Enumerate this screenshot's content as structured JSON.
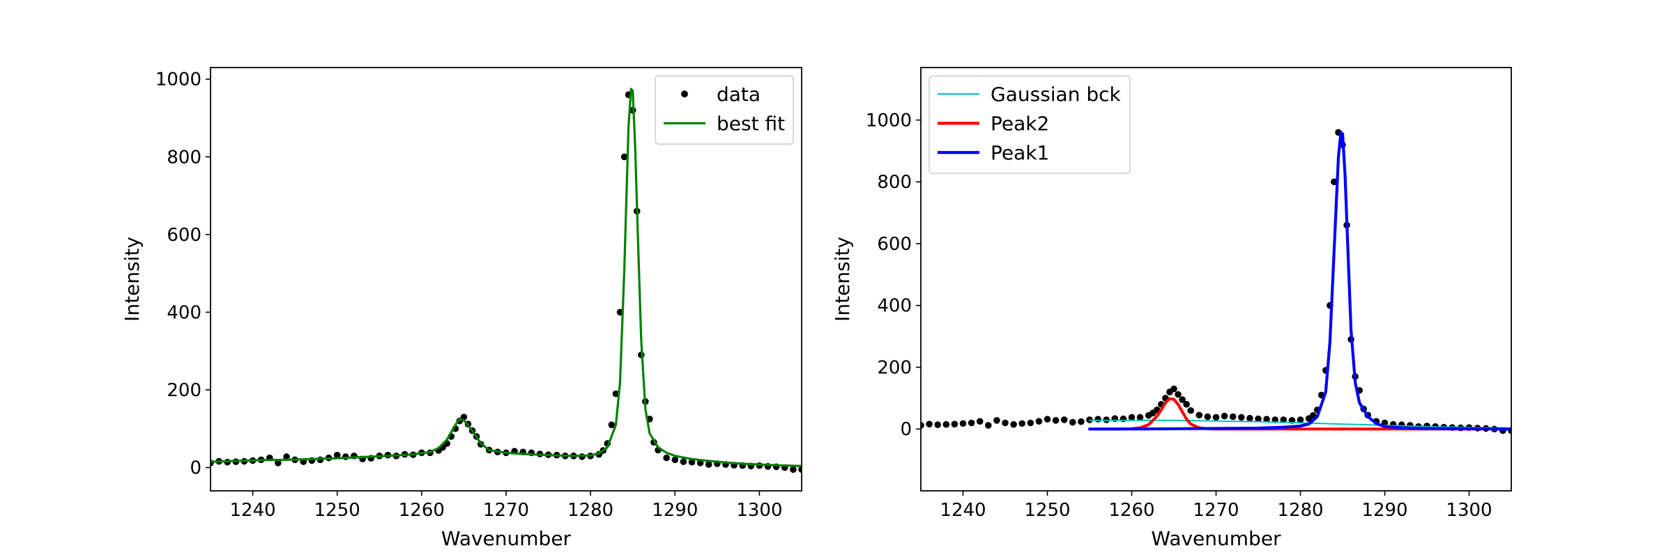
{
  "chart_data": [
    {
      "type": "line",
      "xlabel": "Wavenumber",
      "ylabel": "Intensity",
      "xlim": [
        1235,
        1305
      ],
      "ylim": [
        -60,
        1030
      ],
      "xticks": [
        1240,
        1250,
        1260,
        1270,
        1280,
        1290,
        1300
      ],
      "yticks": [
        0,
        200,
        400,
        600,
        800,
        1000
      ],
      "legend_position": "top-right",
      "series": [
        {
          "name": "data",
          "kind": "scatter",
          "color": "#000000",
          "x": [
            1235,
            1236,
            1237,
            1238,
            1239,
            1240,
            1241,
            1242,
            1243,
            1244,
            1245,
            1246,
            1247,
            1248,
            1249,
            1250,
            1251,
            1252,
            1253,
            1254,
            1255,
            1256,
            1257,
            1258,
            1259,
            1260,
            1261,
            1262,
            1262.5,
            1263,
            1263.5,
            1264,
            1264.5,
            1265,
            1265.5,
            1266,
            1266.5,
            1267,
            1268,
            1269,
            1270,
            1271,
            1272,
            1273,
            1274,
            1275,
            1276,
            1277,
            1278,
            1279,
            1280,
            1281,
            1281.5,
            1282,
            1282.5,
            1283,
            1283.5,
            1284,
            1284.5,
            1285,
            1285.5,
            1286,
            1286.5,
            1287,
            1287.5,
            1288,
            1289,
            1290,
            1291,
            1292,
            1293,
            1294,
            1295,
            1296,
            1297,
            1298,
            1299,
            1300,
            1301,
            1302,
            1303,
            1304,
            1305
          ],
          "y": [
            12,
            16,
            14,
            15,
            16,
            18,
            20,
            25,
            12,
            28,
            20,
            15,
            18,
            20,
            25,
            32,
            28,
            30,
            22,
            24,
            30,
            32,
            30,
            34,
            33,
            38,
            38,
            44,
            52,
            62,
            80,
            100,
            120,
            130,
            112,
            95,
            80,
            60,
            45,
            40,
            38,
            42,
            40,
            38,
            35,
            33,
            32,
            30,
            30,
            28,
            30,
            34,
            44,
            62,
            110,
            190,
            400,
            800,
            960,
            920,
            660,
            290,
            170,
            125,
            65,
            45,
            25,
            20,
            15,
            14,
            12,
            8,
            10,
            8,
            6,
            5,
            4,
            5,
            3,
            2,
            0,
            -5,
            -5
          ]
        },
        {
          "name": "best fit",
          "kind": "line",
          "color": "#008000",
          "x": [
            1235,
            1238,
            1241,
            1244,
            1247,
            1250,
            1253,
            1256,
            1259,
            1261,
            1262,
            1263,
            1264,
            1264.5,
            1265,
            1266,
            1267,
            1268,
            1270,
            1272,
            1275,
            1278,
            1280,
            1281,
            1282,
            1283,
            1283.5,
            1284,
            1284.5,
            1284.8,
            1285,
            1285.3,
            1285.6,
            1286,
            1286.5,
            1287,
            1288,
            1289,
            1290,
            1292,
            1294,
            1296,
            1298,
            1300,
            1302,
            1305
          ],
          "y": [
            15,
            17,
            19,
            20,
            22,
            24,
            27,
            30,
            34,
            40,
            50,
            72,
            110,
            125,
            122,
            95,
            62,
            45,
            38,
            35,
            32,
            30,
            31,
            37,
            52,
            110,
            220,
            510,
            880,
            975,
            970,
            820,
            600,
            330,
            150,
            88,
            52,
            38,
            30,
            22,
            17,
            13,
            10,
            8,
            6,
            4
          ]
        }
      ]
    },
    {
      "type": "line",
      "xlabel": "Wavenumber",
      "ylabel": "Intensity",
      "xlim": [
        1235,
        1305
      ],
      "ylim": [
        -200,
        1170
      ],
      "xticks": [
        1240,
        1250,
        1260,
        1270,
        1280,
        1290,
        1300
      ],
      "yticks": [
        0,
        200,
        400,
        600,
        800,
        1000
      ],
      "legend_position": "top-left",
      "series": [
        {
          "name": "",
          "kind": "scatter",
          "color": "#000000",
          "x": [
            1235,
            1236,
            1237,
            1238,
            1239,
            1240,
            1241,
            1242,
            1243,
            1244,
            1245,
            1246,
            1247,
            1248,
            1249,
            1250,
            1251,
            1252,
            1253,
            1254,
            1255,
            1256,
            1257,
            1258,
            1259,
            1260,
            1261,
            1262,
            1262.5,
            1263,
            1263.5,
            1264,
            1264.5,
            1265,
            1265.5,
            1266,
            1266.5,
            1267,
            1268,
            1269,
            1270,
            1271,
            1272,
            1273,
            1274,
            1275,
            1276,
            1277,
            1278,
            1279,
            1280,
            1281,
            1281.5,
            1282,
            1282.5,
            1283,
            1283.5,
            1284,
            1284.5,
            1285,
            1285.5,
            1286,
            1286.5,
            1287,
            1287.5,
            1288,
            1289,
            1290,
            1291,
            1292,
            1293,
            1294,
            1295,
            1296,
            1297,
            1298,
            1299,
            1300,
            1301,
            1302,
            1303,
            1304,
            1305
          ],
          "y": [
            12,
            16,
            14,
            15,
            16,
            18,
            20,
            25,
            12,
            28,
            20,
            15,
            18,
            20,
            25,
            32,
            28,
            30,
            22,
            24,
            30,
            32,
            30,
            34,
            33,
            38,
            38,
            44,
            52,
            62,
            80,
            100,
            120,
            130,
            112,
            95,
            80,
            60,
            45,
            40,
            38,
            42,
            40,
            38,
            35,
            33,
            32,
            30,
            30,
            28,
            30,
            34,
            44,
            62,
            110,
            190,
            400,
            800,
            960,
            920,
            660,
            290,
            170,
            125,
            65,
            45,
            25,
            20,
            15,
            14,
            12,
            8,
            10,
            8,
            6,
            5,
            4,
            5,
            3,
            2,
            0,
            -5,
            -5
          ]
        },
        {
          "name": "Gaussian bck",
          "kind": "line",
          "color": "#00bfbf",
          "x": [
            1255,
            1265,
            1275,
            1285,
            1295,
            1305
          ],
          "y": [
            28,
            28,
            24,
            16,
            8,
            3
          ]
        },
        {
          "name": "Peak2",
          "kind": "line",
          "color": "#ff0000",
          "x": [
            1255,
            1258,
            1260,
            1261,
            1262,
            1263,
            1263.5,
            1264,
            1264.5,
            1265,
            1265.5,
            1266,
            1266.5,
            1267,
            1268,
            1269,
            1270,
            1272,
            1275,
            1280,
            1285,
            1290,
            1295,
            1300,
            1305
          ],
          "y": [
            0,
            0,
            1,
            4,
            14,
            42,
            62,
            85,
            98,
            96,
            80,
            56,
            32,
            16,
            4,
            1,
            0,
            0,
            0,
            0,
            0,
            0,
            0,
            0,
            0
          ]
        },
        {
          "name": "Peak1",
          "kind": "line",
          "color": "#0000ff",
          "x": [
            1255,
            1260,
            1265,
            1270,
            1275,
            1278,
            1280,
            1281,
            1282,
            1283,
            1283.5,
            1284,
            1284.5,
            1284.8,
            1285,
            1285.3,
            1285.6,
            1286,
            1286.5,
            1287,
            1288,
            1289,
            1290,
            1292,
            1295,
            1300,
            1305
          ],
          "y": [
            0,
            0,
            1,
            2,
            3,
            6,
            10,
            16,
            40,
            120,
            280,
            580,
            880,
            960,
            955,
            820,
            600,
            320,
            150,
            85,
            40,
            18,
            8,
            4,
            2,
            1,
            0
          ]
        }
      ]
    }
  ]
}
